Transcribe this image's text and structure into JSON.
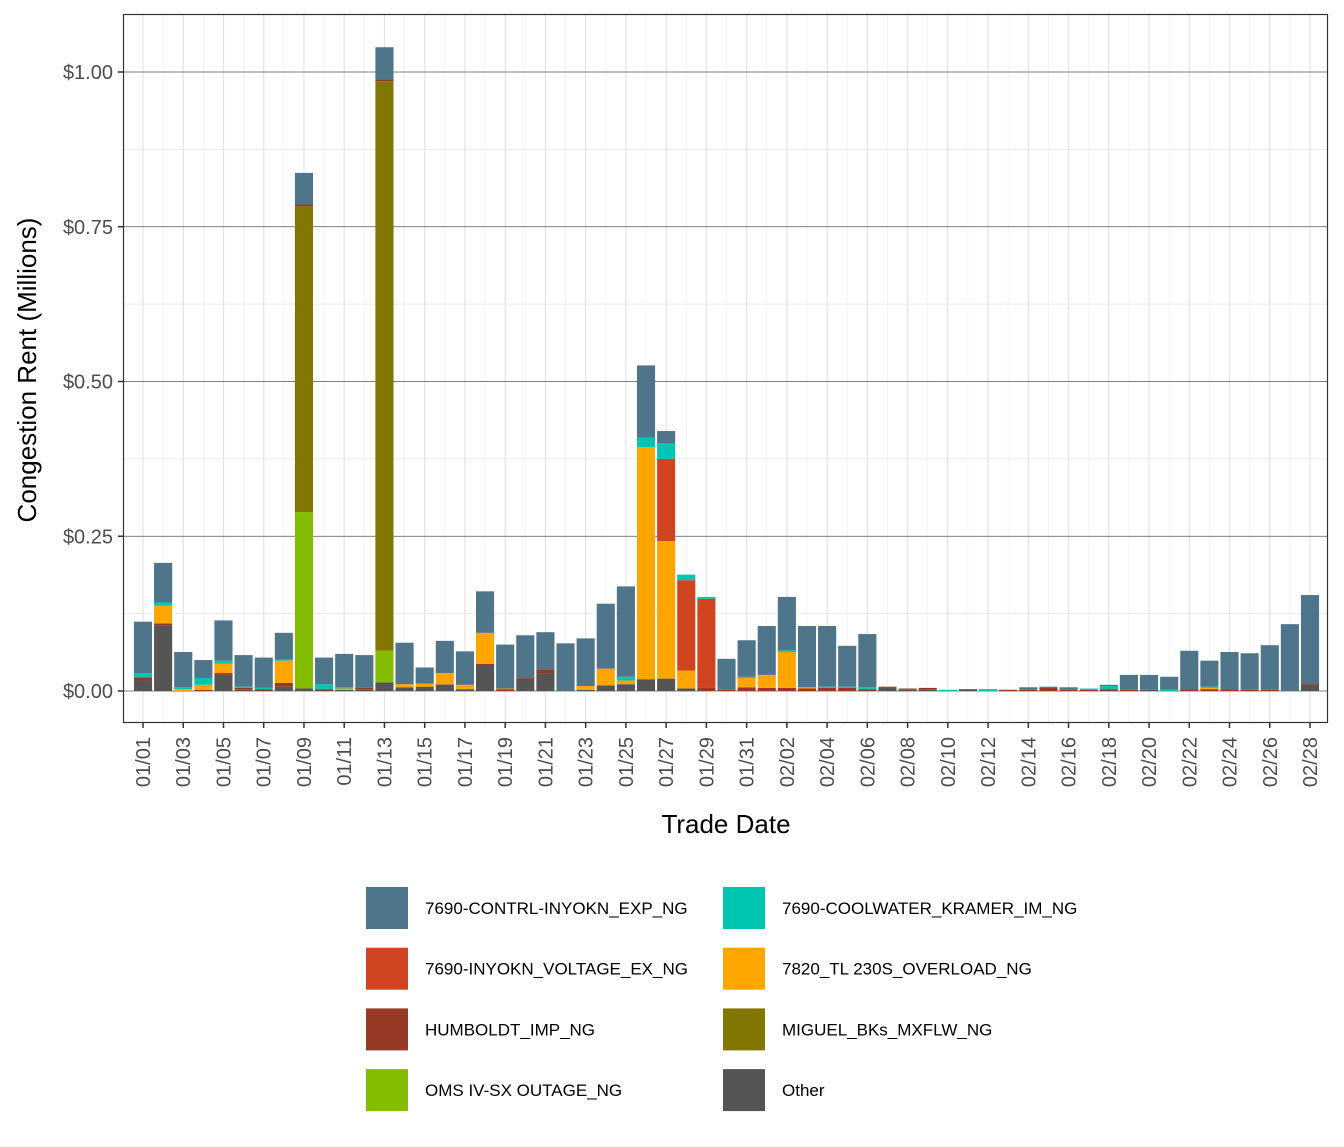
{
  "chart_data": {
    "type": "bar",
    "stacked": true,
    "title": "",
    "xlabel": "Trade Date",
    "ylabel": "Congestion Rent (Millions)",
    "ylim": [
      0,
      1.05
    ],
    "yticks": [
      0,
      0.25,
      0.5,
      0.75,
      1.0
    ],
    "ytick_labels": [
      "$0.00",
      "$0.25",
      "$0.50",
      "$0.75",
      "$1.00"
    ],
    "grid": true,
    "legend_placement": "bottom",
    "x": [
      "01/01",
      "01/02",
      "01/03",
      "01/04",
      "01/05",
      "01/06",
      "01/07",
      "01/08",
      "01/09",
      "01/10",
      "01/11",
      "01/12",
      "01/13",
      "01/14",
      "01/15",
      "01/16",
      "01/17",
      "01/18",
      "01/19",
      "01/20",
      "01/21",
      "01/22",
      "01/23",
      "01/24",
      "01/25",
      "01/26",
      "01/27",
      "01/28",
      "01/29",
      "01/30",
      "01/31",
      "02/01",
      "02/02",
      "02/03",
      "02/04",
      "02/05",
      "02/06",
      "02/07",
      "02/08",
      "02/09",
      "02/10",
      "02/11",
      "02/12",
      "02/13",
      "02/14",
      "02/15",
      "02/16",
      "02/17",
      "02/18",
      "02/19",
      "02/20",
      "02/21",
      "02/22",
      "02/23",
      "02/24",
      "02/25",
      "02/26",
      "02/27",
      "02/28"
    ],
    "series": [
      {
        "name": "Other",
        "color": "#555555",
        "values": [
          0.017,
          0.106,
          0,
          0,
          0.026,
          0.002,
          0,
          0.007,
          0.004,
          0,
          0.002,
          0.002,
          0.014,
          0.006,
          0.007,
          0.01,
          0.003,
          0.042,
          0,
          0.02,
          0.029,
          0.001,
          0.002,
          0.009,
          0.011,
          0.019,
          0.02,
          0.004,
          0,
          0,
          0,
          0,
          0,
          0,
          0,
          0,
          0,
          0.005,
          0.002,
          0.002,
          0,
          0.003,
          0,
          0,
          0,
          0,
          0,
          0,
          0,
          0,
          0.002,
          0,
          0,
          0,
          0,
          0,
          0,
          0,
          0.01
        ]
      },
      {
        "name": "OMS IV-SX OUTAGE_NG",
        "color": "#84bd00",
        "values": [
          0,
          0,
          0,
          0,
          0,
          0,
          0,
          0,
          0.285,
          0,
          0,
          0,
          0.051,
          0,
          0,
          0,
          0,
          0,
          0,
          0,
          0,
          0,
          0,
          0,
          0,
          0,
          0,
          0,
          0,
          0,
          0,
          0,
          0,
          0,
          0,
          0,
          0,
          0,
          0,
          0,
          0,
          0,
          0,
          0,
          0,
          0,
          0,
          0,
          0,
          0,
          0,
          0,
          0,
          0,
          0,
          0,
          0,
          0,
          0
        ]
      },
      {
        "name": "MIGUEL_BKs_MXFLW_NG",
        "color": "#817702",
        "values": [
          0,
          0,
          0,
          0,
          0,
          0,
          0,
          0,
          0.494,
          0,
          0,
          0,
          0.92,
          0,
          0,
          0,
          0,
          0,
          0,
          0,
          0,
          0,
          0,
          0,
          0,
          0,
          0,
          0,
          0,
          0,
          0,
          0,
          0,
          0,
          0,
          0,
          0,
          0,
          0,
          0,
          0,
          0,
          0,
          0,
          0,
          0,
          0,
          0,
          0,
          0,
          0,
          0,
          0,
          0,
          0,
          0,
          0,
          0,
          0
        ]
      },
      {
        "name": "HUMBOLDT_IMP_NG",
        "color": "#963a26",
        "values": [
          0.005,
          0.003,
          0,
          0.002,
          0.003,
          0.003,
          0.003,
          0.006,
          0.003,
          0.003,
          0,
          0.003,
          0.003,
          0,
          0,
          0.001,
          0,
          0.002,
          0.003,
          0.002,
          0.006,
          0,
          0,
          0,
          0,
          0,
          0,
          0,
          0.006,
          0.002,
          0.006,
          0.005,
          0.005,
          0.004,
          0.005,
          0.005,
          0.003,
          0.002,
          0.002,
          0.003,
          0,
          0,
          0,
          0.002,
          0.002,
          0.005,
          0.002,
          0.002,
          0.003,
          0.002,
          0,
          0,
          0.003,
          0.003,
          0.003,
          0.002,
          0.002,
          0,
          0.002
        ]
      },
      {
        "name": "7820_TL 230S_OVERLOAD_NG",
        "color": "#ffa500",
        "values": [
          0,
          0.029,
          0.003,
          0.008,
          0.015,
          0,
          0,
          0.036,
          0,
          0,
          0.002,
          0,
          0,
          0.005,
          0.005,
          0.018,
          0.007,
          0.05,
          0.001,
          0,
          0,
          0,
          0.006,
          0.027,
          0.006,
          0.375,
          0.222,
          0.029,
          0,
          0,
          0.015,
          0.021,
          0.058,
          0.002,
          0,
          0,
          0,
          0,
          0,
          0,
          0,
          0,
          0,
          0,
          0,
          0,
          0,
          0,
          0,
          0,
          0,
          0,
          0,
          0.002,
          0,
          0,
          0,
          0,
          0
        ]
      },
      {
        "name": "7690-INYOKN_VOLTAGE_EX_NG",
        "color": "#d04520",
        "values": [
          0,
          0,
          0,
          0,
          0,
          0,
          0,
          0,
          0,
          0,
          0,
          0,
          0,
          0,
          0,
          0,
          0,
          0,
          0,
          0,
          0,
          0,
          0,
          0,
          0,
          0,
          0.133,
          0.146,
          0.143,
          0,
          0,
          0,
          0,
          0,
          0,
          0,
          0,
          0,
          0,
          0,
          0,
          0,
          0,
          0,
          0,
          0,
          0,
          0,
          0,
          0,
          0,
          0,
          0,
          0,
          0,
          0,
          0,
          0,
          0
        ]
      },
      {
        "name": "7690-COOLWATER_KRAMER_IM_NG",
        "color": "#00c5b0",
        "values": [
          0.007,
          0.005,
          0.003,
          0.011,
          0.005,
          0.002,
          0.002,
          0.002,
          0,
          0.008,
          0.002,
          0,
          0,
          0,
          0,
          0,
          0,
          0,
          0,
          0,
          0,
          0,
          0,
          0,
          0.006,
          0.015,
          0.025,
          0.009,
          0.003,
          0,
          0.002,
          0,
          0.003,
          0,
          0.002,
          0.002,
          0.003,
          0,
          0,
          0,
          0.002,
          0,
          0.003,
          0,
          0,
          0,
          0,
          0.002,
          0.005,
          0,
          0,
          0.002,
          0,
          0.002,
          0,
          0,
          0,
          0,
          0
        ]
      },
      {
        "name": "7690-CONTRL-INYOKN_EXP_NG",
        "color": "#4e758a",
        "values": [
          0.083,
          0.064,
          0.057,
          0.029,
          0.065,
          0.051,
          0.049,
          0.043,
          0.051,
          0.043,
          0.054,
          0.053,
          0.052,
          0.067,
          0.026,
          0.052,
          0.054,
          0.067,
          0.071,
          0.068,
          0.06,
          0.076,
          0.077,
          0.105,
          0.146,
          0.117,
          0.02,
          0,
          0,
          0.05,
          0.059,
          0.079,
          0.086,
          0.099,
          0.098,
          0.066,
          0.086,
          0,
          0,
          0,
          0,
          0,
          0,
          0,
          0.004,
          0.002,
          0.004,
          0,
          0.002,
          0.024,
          0.024,
          0.021,
          0.062,
          0.042,
          0.06,
          0.059,
          0.072,
          0.108,
          0.143
        ]
      }
    ],
    "legend_order": [
      "7690-CONTRL-INYOKN_EXP_NG",
      "7690-COOLWATER_KRAMER_IM_NG",
      "7690-INYOKN_VOLTAGE_EX_NG",
      "7820_TL 230S_OVERLOAD_NG",
      "HUMBOLDT_IMP_NG",
      "MIGUEL_BKs_MXFLW_NG",
      "OMS IV-SX OUTAGE_NG",
      "Other"
    ]
  }
}
